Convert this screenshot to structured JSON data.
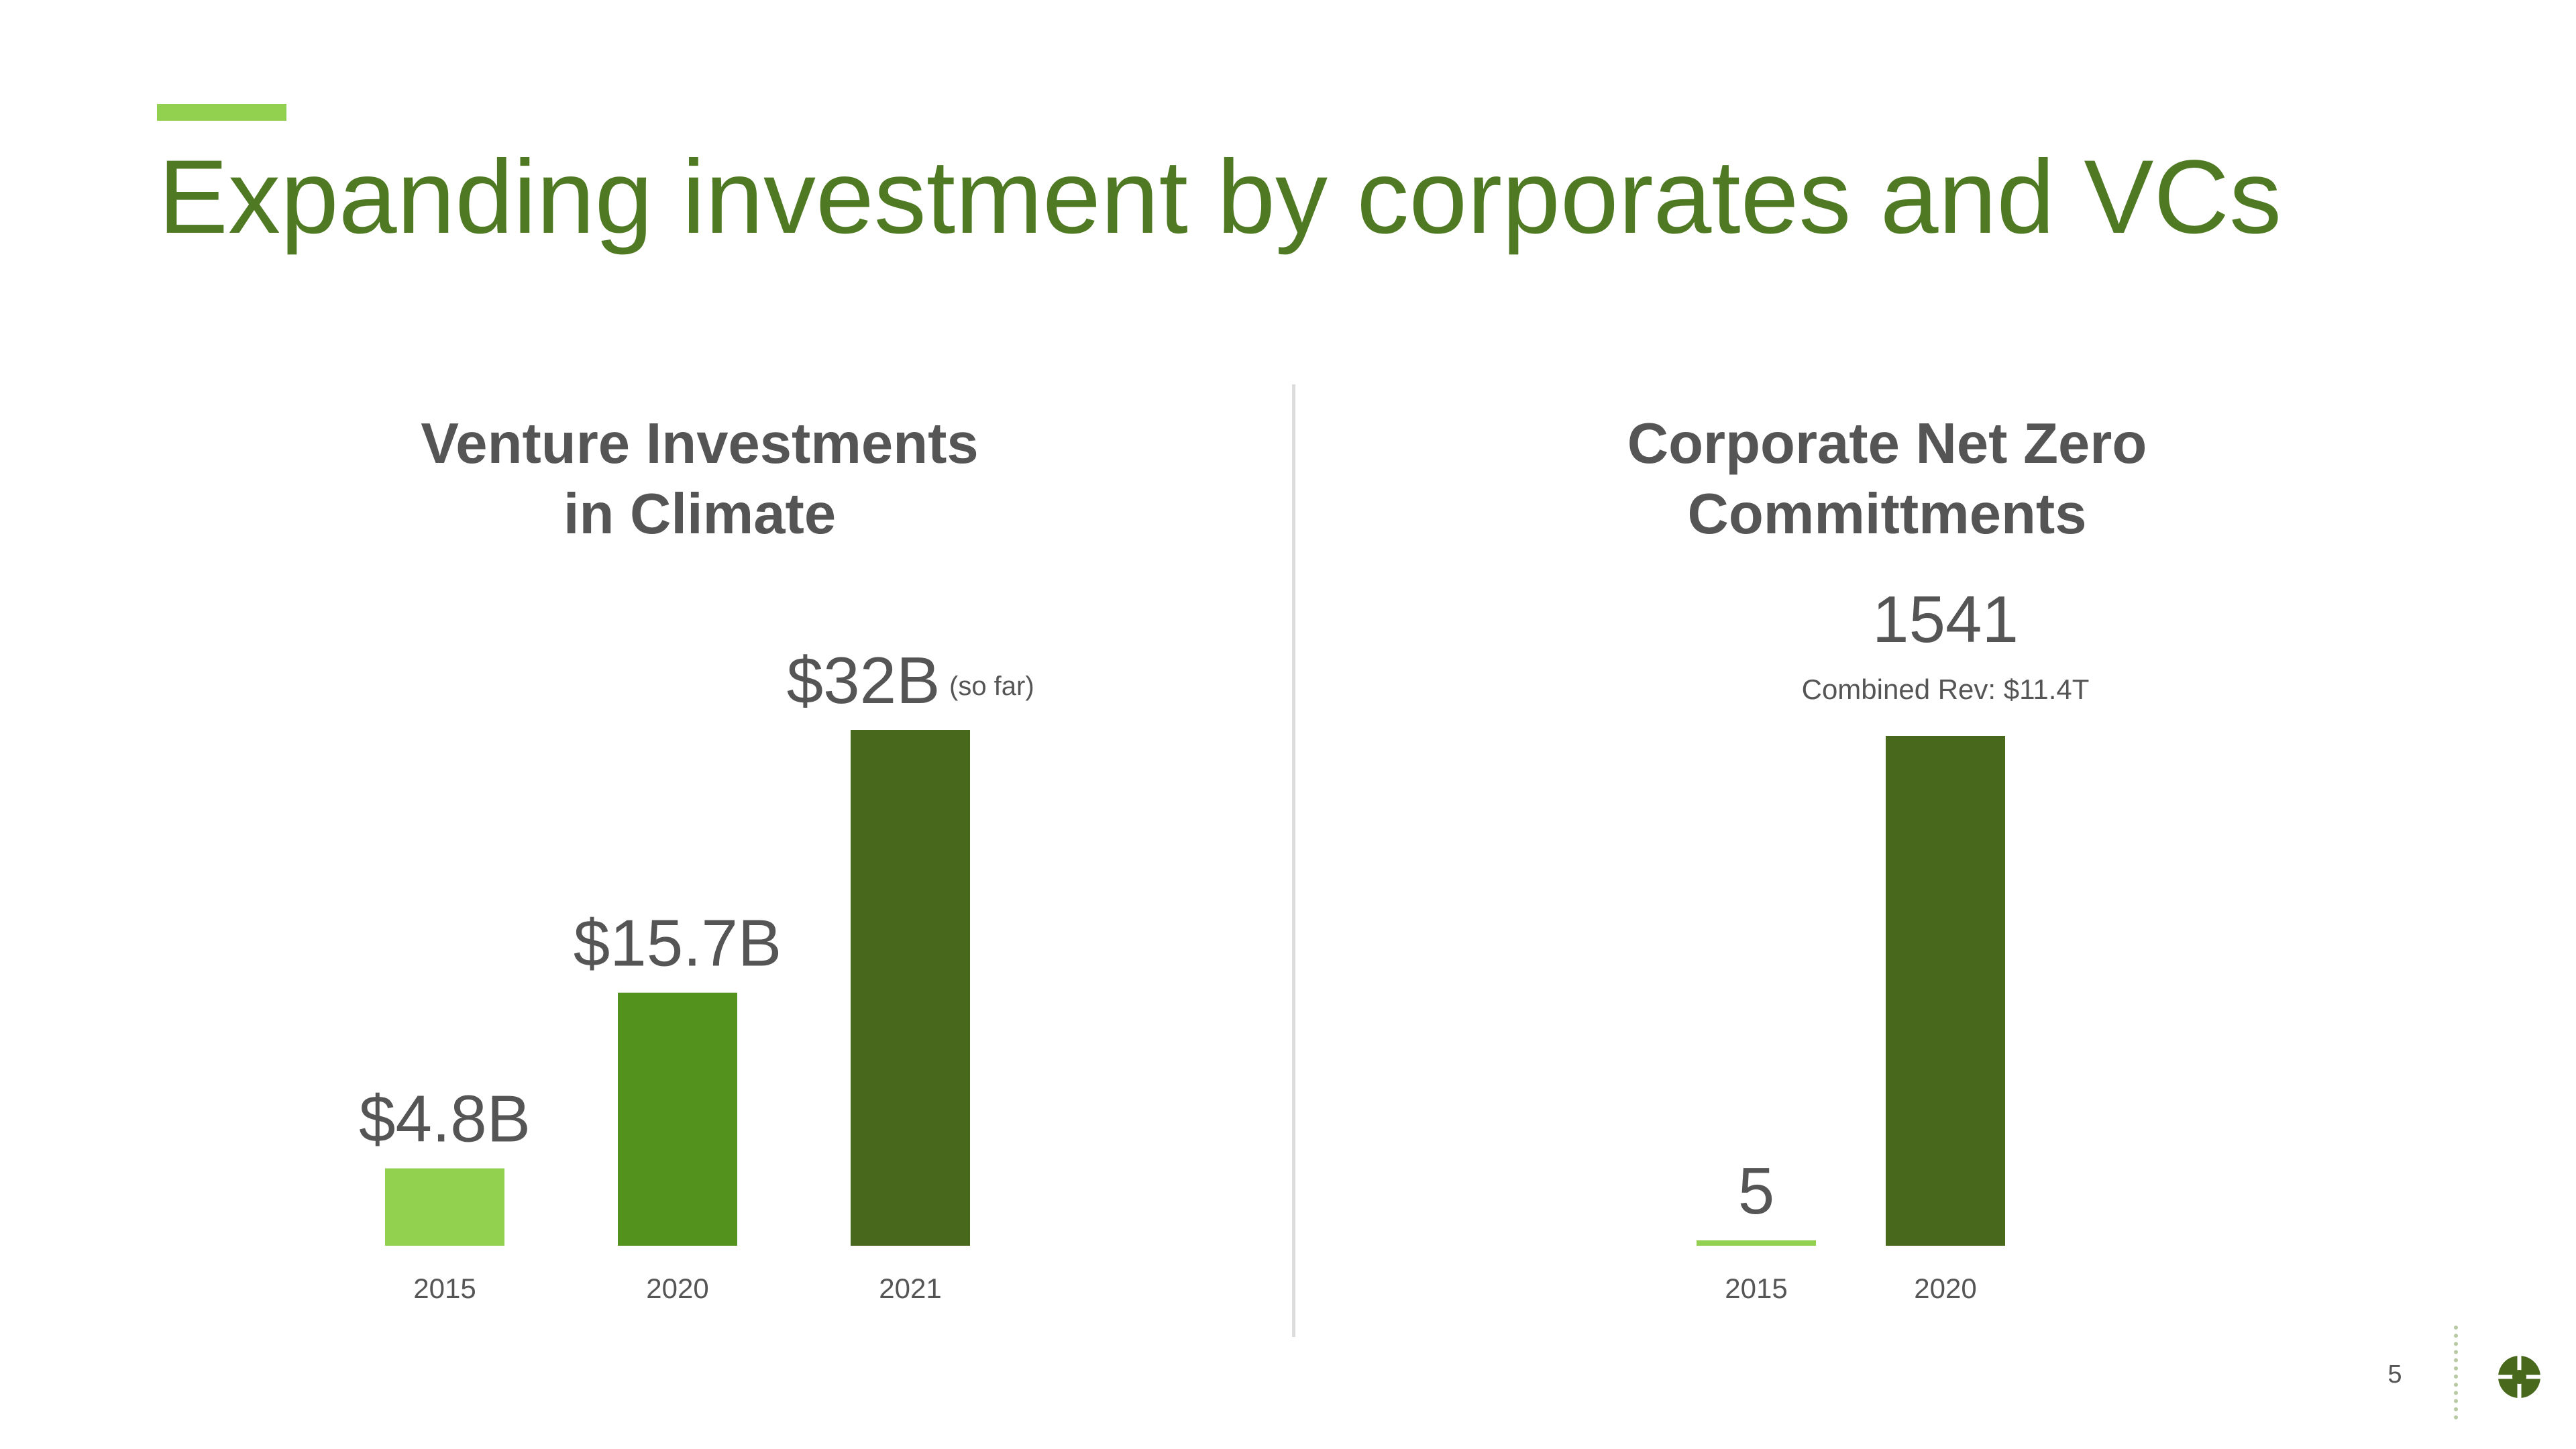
{
  "slide": {
    "title": "Expanding investment by corporates and VCs",
    "page_number": "5"
  },
  "colors": {
    "accent": "#92d050",
    "title": "#4f7a23",
    "text": "#555555",
    "divider": "#dcdcdc",
    "light_green": "#92d050",
    "mid_green": "#52921d",
    "dark_green": "#48681c"
  },
  "icons": {
    "logo": "brand-logo-icon"
  },
  "chart_data": [
    {
      "type": "bar",
      "title": [
        "Venture Investments",
        "in Climate"
      ],
      "categories": [
        "2015",
        "2020",
        "2021"
      ],
      "values": [
        4.8,
        15.7,
        32
      ],
      "value_labels": [
        "$4.8B",
        "$15.7B",
        "$32B"
      ],
      "value_notes": [
        "",
        "",
        "(so far)"
      ],
      "bar_colors": [
        "#92d050",
        "#52921d",
        "#48681c"
      ],
      "unit": "billion USD",
      "ylim": [
        0,
        32
      ]
    },
    {
      "type": "bar",
      "title": [
        "Corporate Net Zero",
        "Committments"
      ],
      "categories": [
        "2015",
        "2020"
      ],
      "values": [
        5,
        1541
      ],
      "value_labels": [
        "5",
        "1541"
      ],
      "value_sublabels": [
        "",
        "Combined Rev: $11.4T"
      ],
      "bar_colors": [
        "#92d050",
        "#48681c"
      ],
      "ylim": [
        0,
        1541
      ]
    }
  ]
}
